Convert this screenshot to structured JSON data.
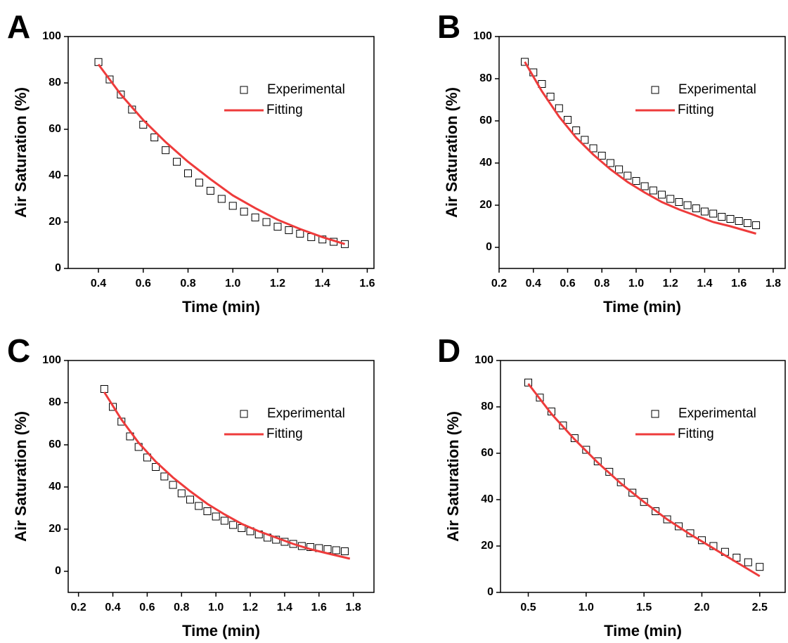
{
  "chart_data": [
    {
      "type": "scatter",
      "panel_label": "A",
      "xlabel": "Time (min)",
      "ylabel": "Air Saturation (%)",
      "xlim": [
        0.265,
        1.63
      ],
      "ylim": [
        0,
        100
      ],
      "xticks": [
        0.4,
        0.6,
        0.8,
        {
          "value": 1,
          "label": "1.0"
        },
        1.2,
        1.4,
        1.6
      ],
      "yticks": [
        0,
        20,
        40,
        60,
        80,
        100
      ],
      "legend": "upper right",
      "series": [
        {
          "name": "Experimental",
          "type": "scatter",
          "color": "#000000",
          "x": [
            0.4,
            0.45,
            0.5,
            0.55,
            0.6,
            0.65,
            0.7,
            0.75,
            0.8,
            0.85,
            0.9,
            0.95,
            1.0,
            1.05,
            1.1,
            1.15,
            1.2,
            1.25,
            1.3,
            1.35,
            1.4,
            1.45,
            1.5
          ],
          "values": [
            89,
            81.5,
            75,
            68.5,
            62,
            56.5,
            51,
            46,
            41,
            37,
            33.5,
            30,
            27,
            24.5,
            22,
            20,
            18,
            16.5,
            15,
            13.5,
            12.5,
            11.5,
            10.5
          ]
        },
        {
          "name": "Fitting",
          "type": "line",
          "color": "#ee3b3b",
          "x": [
            0.4,
            0.5,
            0.6,
            0.7,
            0.8,
            0.9,
            1.0,
            1.1,
            1.2,
            1.3,
            1.4,
            1.5
          ],
          "values": [
            88,
            75,
            64,
            54.5,
            46,
            38.5,
            31.5,
            26,
            21,
            17,
            13.5,
            10.5
          ]
        }
      ]
    },
    {
      "type": "scatter",
      "panel_label": "B",
      "xlabel": "Time (min)",
      "ylabel": "Air Saturation (%)",
      "xlim": [
        0.2,
        1.87
      ],
      "ylim": [
        -10,
        100
      ],
      "xticks": [
        0.2,
        0.4,
        0.6,
        0.8,
        {
          "value": 1,
          "label": "1.0"
        },
        1.2,
        1.4,
        1.6,
        1.8
      ],
      "yticks": [
        0,
        20,
        40,
        60,
        80,
        100
      ],
      "legend": "upper right",
      "series": [
        {
          "name": "Experimental",
          "type": "scatter",
          "color": "#000000",
          "x": [
            0.35,
            0.4,
            0.45,
            0.5,
            0.55,
            0.6,
            0.65,
            0.7,
            0.75,
            0.8,
            0.85,
            0.9,
            0.95,
            1.0,
            1.05,
            1.1,
            1.15,
            1.2,
            1.25,
            1.3,
            1.35,
            1.4,
            1.45,
            1.5,
            1.55,
            1.6,
            1.65,
            1.7
          ],
          "values": [
            88,
            83,
            77.5,
            71.5,
            66,
            60.5,
            55.5,
            51,
            47,
            43.5,
            40,
            37,
            34,
            31.5,
            29,
            27,
            25,
            23,
            21.5,
            20,
            18.5,
            17,
            16,
            14.5,
            13.5,
            12.5,
            11.5,
            10.5
          ]
        },
        {
          "name": "Fitting",
          "type": "line",
          "color": "#ee3b3b",
          "x": [
            0.35,
            0.45,
            0.55,
            0.65,
            0.75,
            0.85,
            0.95,
            1.05,
            1.15,
            1.25,
            1.35,
            1.45,
            1.55,
            1.7
          ],
          "values": [
            88,
            74,
            62,
            52,
            44,
            37,
            31,
            26,
            21.5,
            18,
            15,
            12,
            10,
            6.5
          ]
        }
      ]
    },
    {
      "type": "scatter",
      "panel_label": "C",
      "xlabel": "Time (min)",
      "ylabel": "Air Saturation (%)",
      "xlim": [
        0.14,
        1.92
      ],
      "ylim": [
        -10,
        100
      ],
      "xticks": [
        0.2,
        0.4,
        0.6,
        0.8,
        {
          "value": 1,
          "label": "1.0"
        },
        1.2,
        1.4,
        1.6,
        1.8
      ],
      "yticks": [
        0,
        20,
        40,
        60,
        80,
        100
      ],
      "legend": "upper right",
      "series": [
        {
          "name": "Experimental",
          "type": "scatter",
          "color": "#000000",
          "x": [
            0.35,
            0.4,
            0.45,
            0.5,
            0.55,
            0.6,
            0.65,
            0.7,
            0.75,
            0.8,
            0.85,
            0.9,
            0.95,
            1.0,
            1.05,
            1.1,
            1.15,
            1.2,
            1.25,
            1.3,
            1.35,
            1.4,
            1.45,
            1.5,
            1.55,
            1.6,
            1.65,
            1.7,
            1.75
          ],
          "values": [
            86.5,
            78,
            71,
            64,
            59,
            54,
            49.5,
            45,
            41,
            37,
            34,
            31,
            28.5,
            26,
            24,
            22,
            20.5,
            19,
            17.5,
            16,
            15,
            14,
            13,
            12,
            11.5,
            11,
            10.5,
            10,
            9.5
          ]
        },
        {
          "name": "Fitting",
          "type": "line",
          "color": "#ee3b3b",
          "x": [
            0.35,
            0.45,
            0.55,
            0.65,
            0.75,
            0.85,
            0.95,
            1.05,
            1.15,
            1.25,
            1.35,
            1.45,
            1.55,
            1.65,
            1.78
          ],
          "values": [
            85,
            72,
            61,
            52,
            44.5,
            38,
            32,
            27,
            22.5,
            19,
            16,
            13,
            10.5,
            8.5,
            6
          ]
        }
      ]
    },
    {
      "type": "scatter",
      "panel_label": "D",
      "xlabel": "Time (min)",
      "ylabel": "Air Saturation (%)",
      "xlim": [
        0.26,
        2.72
      ],
      "ylim": [
        0,
        100
      ],
      "xticks": [
        0.5,
        {
          "value": 1,
          "label": "1.0"
        },
        1.5,
        {
          "value": 2,
          "label": "2.0"
        },
        2.5
      ],
      "yticks": [
        0,
        20,
        40,
        60,
        80,
        100
      ],
      "legend": "upper right",
      "series": [
        {
          "name": "Experimental",
          "type": "scatter",
          "color": "#000000",
          "x": [
            0.5,
            0.6,
            0.7,
            0.8,
            0.9,
            1.0,
            1.1,
            1.2,
            1.3,
            1.4,
            1.5,
            1.6,
            1.7,
            1.8,
            1.9,
            2.0,
            2.1,
            2.2,
            2.3,
            2.4,
            2.5
          ],
          "values": [
            90.5,
            84,
            78,
            72,
            66.5,
            61.5,
            56.5,
            52,
            47.5,
            43,
            39,
            35,
            31.5,
            28.5,
            25.5,
            22.5,
            20,
            17.5,
            15,
            13,
            11
          ]
        },
        {
          "name": "Fitting",
          "type": "line",
          "color": "#ee3b3b",
          "x": [
            0.5,
            0.7,
            0.9,
            1.1,
            1.3,
            1.5,
            1.7,
            1.9,
            2.1,
            2.3,
            2.5
          ],
          "values": [
            90,
            77,
            66,
            56,
            47,
            39,
            31.5,
            25,
            19,
            13,
            7
          ]
        }
      ]
    }
  ]
}
